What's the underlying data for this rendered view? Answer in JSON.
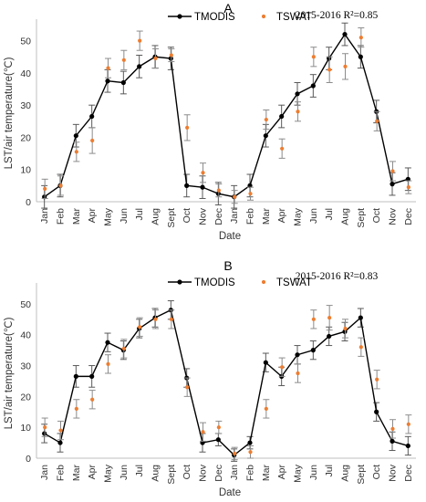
{
  "chart_data": [
    {
      "type": "line",
      "panel_label": "A",
      "annotation": "2015-2016 R²=0.85",
      "xlabel": "Date",
      "ylabel": "LST/air temperature(℃)",
      "ylim": [
        0,
        55
      ],
      "yticks": [
        0,
        10,
        20,
        30,
        40,
        50
      ],
      "legend_placement": "top",
      "grid": false,
      "categories": [
        "Jan",
        "Feb",
        "Mar",
        "Apr",
        "May",
        "Jun",
        "Jul",
        "Aug",
        "Sept",
        "Oct",
        "Nov",
        "Dec",
        "Jan",
        "Feb",
        "Mar",
        "Apr",
        "May",
        "Jun",
        "Jul",
        "Aug",
        "Sept",
        "Oct",
        "Nov",
        "Dec"
      ],
      "series": [
        {
          "name": "TMODIS",
          "style": "line-marker",
          "color": "#000000",
          "values": [
            1.5,
            5,
            20.5,
            26.5,
            37.5,
            37,
            42,
            45,
            44.5,
            5,
            4.5,
            2.5,
            1.5,
            5,
            20.5,
            26.5,
            33.5,
            36,
            44.5,
            52,
            45,
            28,
            5.5,
            7
          ],
          "errors": [
            3.5,
            3.5,
            3.5,
            3.5,
            3.5,
            3.5,
            3.5,
            3.5,
            3.5,
            3.5,
            3.5,
            3.5,
            3.5,
            3.5,
            3.5,
            3.5,
            3.5,
            3.5,
            3.5,
            3.5,
            3.5,
            3.5,
            3.5,
            3.5
          ]
        },
        {
          "name": "TSWAT",
          "style": "marker",
          "color": "#ed7d31",
          "values": [
            4,
            5,
            15.5,
            19,
            41.5,
            44,
            50,
            44.5,
            45.5,
            23,
            9,
            3.5,
            1.5,
            2.5,
            25.5,
            16.5,
            28,
            45,
            41,
            42,
            51,
            25,
            9.5,
            4.5
          ],
          "errors": [
            3,
            3,
            3,
            4,
            3,
            3,
            3,
            3,
            2,
            4,
            3,
            2,
            2,
            2,
            3,
            3,
            3,
            3,
            4,
            4,
            3,
            3,
            3,
            2
          ]
        }
      ]
    },
    {
      "type": "line",
      "panel_label": "B",
      "annotation": "2015-2016 R²=0.83",
      "xlabel": "Date",
      "ylabel": "LST/air temperature(℃)",
      "ylim": [
        0,
        55
      ],
      "yticks": [
        0,
        10,
        20,
        30,
        40,
        50
      ],
      "legend_placement": "top",
      "grid": false,
      "categories": [
        "Jan",
        "Feb",
        "Mar",
        "Apr",
        "May",
        "Jun",
        "Jul",
        "Aug",
        "Sept",
        "Oct",
        "Nov",
        "Dec",
        "Jan",
        "Feb",
        "Mar",
        "Apr",
        "May",
        "Jun",
        "Jul",
        "Aug",
        "Sept",
        "Oct",
        "Nov",
        "Dec"
      ],
      "series": [
        {
          "name": "TMODIS",
          "style": "line-marker",
          "color": "#000000",
          "values": [
            8,
            5,
            26.5,
            26.5,
            37.5,
            35,
            42,
            45.5,
            48,
            26,
            5,
            6,
            1,
            5,
            31,
            26.5,
            33.5,
            35,
            39.5,
            41,
            45.5,
            15,
            5.5,
            4
          ],
          "errors": [
            3,
            3,
            3.5,
            3.5,
            3,
            3,
            3,
            3,
            3,
            3,
            3,
            2,
            2,
            2,
            3,
            3,
            3,
            3,
            3,
            3,
            3,
            3,
            3,
            3
          ]
        },
        {
          "name": "TSWAT",
          "style": "marker",
          "color": "#ed7d31",
          "values": [
            10,
            9,
            16,
            19,
            30.5,
            35.5,
            42.5,
            45,
            45,
            23,
            8.5,
            10,
            1.5,
            2,
            16,
            29.5,
            27.5,
            45,
            45.5,
            42,
            36,
            25.5,
            9.5,
            11
          ],
          "errors": [
            3,
            3,
            3,
            3,
            3,
            3,
            3,
            3,
            3,
            3,
            3,
            2,
            2,
            2,
            3,
            3,
            3,
            3,
            4,
            3,
            3,
            3,
            3,
            3
          ]
        }
      ]
    }
  ]
}
